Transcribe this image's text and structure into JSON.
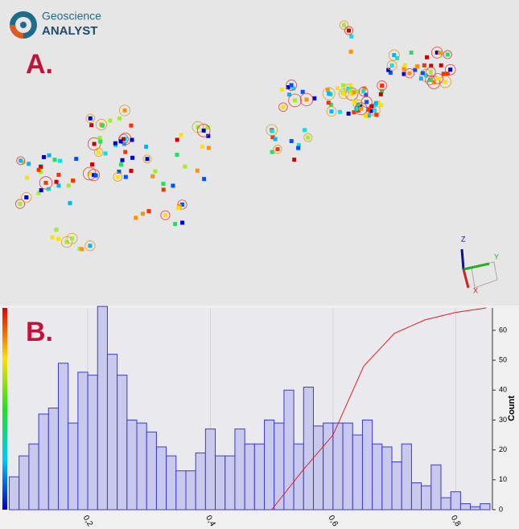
{
  "logo": {
    "line1": "Geoscience",
    "line2": "ANALYST"
  },
  "panels": {
    "a": "A.",
    "b": "B."
  },
  "triad": {
    "z": "Z",
    "y": "Y",
    "x": "X"
  },
  "chart_data": {
    "type": "histogram",
    "bins": [
      0.072,
      0.088,
      0.104,
      0.12,
      0.136,
      0.152,
      0.168,
      0.184,
      0.2,
      0.216,
      0.232,
      0.248,
      0.264,
      0.28,
      0.296,
      0.312,
      0.328,
      0.344,
      0.36,
      0.376,
      0.392,
      0.408,
      0.424,
      0.44,
      0.456,
      0.472,
      0.488,
      0.504,
      0.52,
      0.536,
      0.552,
      0.568,
      0.584,
      0.6,
      0.616,
      0.632,
      0.648,
      0.664,
      0.68,
      0.696,
      0.712,
      0.728,
      0.744,
      0.76,
      0.776,
      0.792,
      0.808,
      0.824,
      0.84,
      0.856
    ],
    "counts": [
      11,
      18,
      22,
      32,
      34,
      49,
      29,
      46,
      45,
      68,
      52,
      45,
      30,
      29,
      26,
      21,
      18,
      13,
      13,
      19,
      27,
      18,
      18,
      27,
      22,
      22,
      30,
      29,
      40,
      22,
      41,
      28,
      29,
      29,
      29,
      25,
      30,
      22,
      21,
      16,
      22,
      9,
      8,
      15,
      4,
      6,
      2,
      1,
      2
    ],
    "color": "#3a3ad0",
    "fill": "#c9c9ee",
    "xlim": [
      0.07,
      0.86
    ],
    "xticks": [
      {
        "value": 0.2,
        "label": "0,2"
      },
      {
        "value": 0.4,
        "label": "0,4"
      },
      {
        "value": 0.6,
        "label": "0,6"
      },
      {
        "value": 0.8,
        "label": "0,8"
      }
    ],
    "ylim": [
      0,
      67.5
    ],
    "yticks": [
      0,
      10,
      20,
      30,
      40,
      50,
      60
    ],
    "ylabel": "Count",
    "line": {
      "color": "#e02020",
      "x": [
        0.5,
        0.55,
        0.6,
        0.65,
        0.7,
        0.75,
        0.8,
        0.85
      ],
      "values": [
        0,
        13,
        25,
        48,
        59,
        63.5,
        66,
        67.5
      ]
    }
  }
}
